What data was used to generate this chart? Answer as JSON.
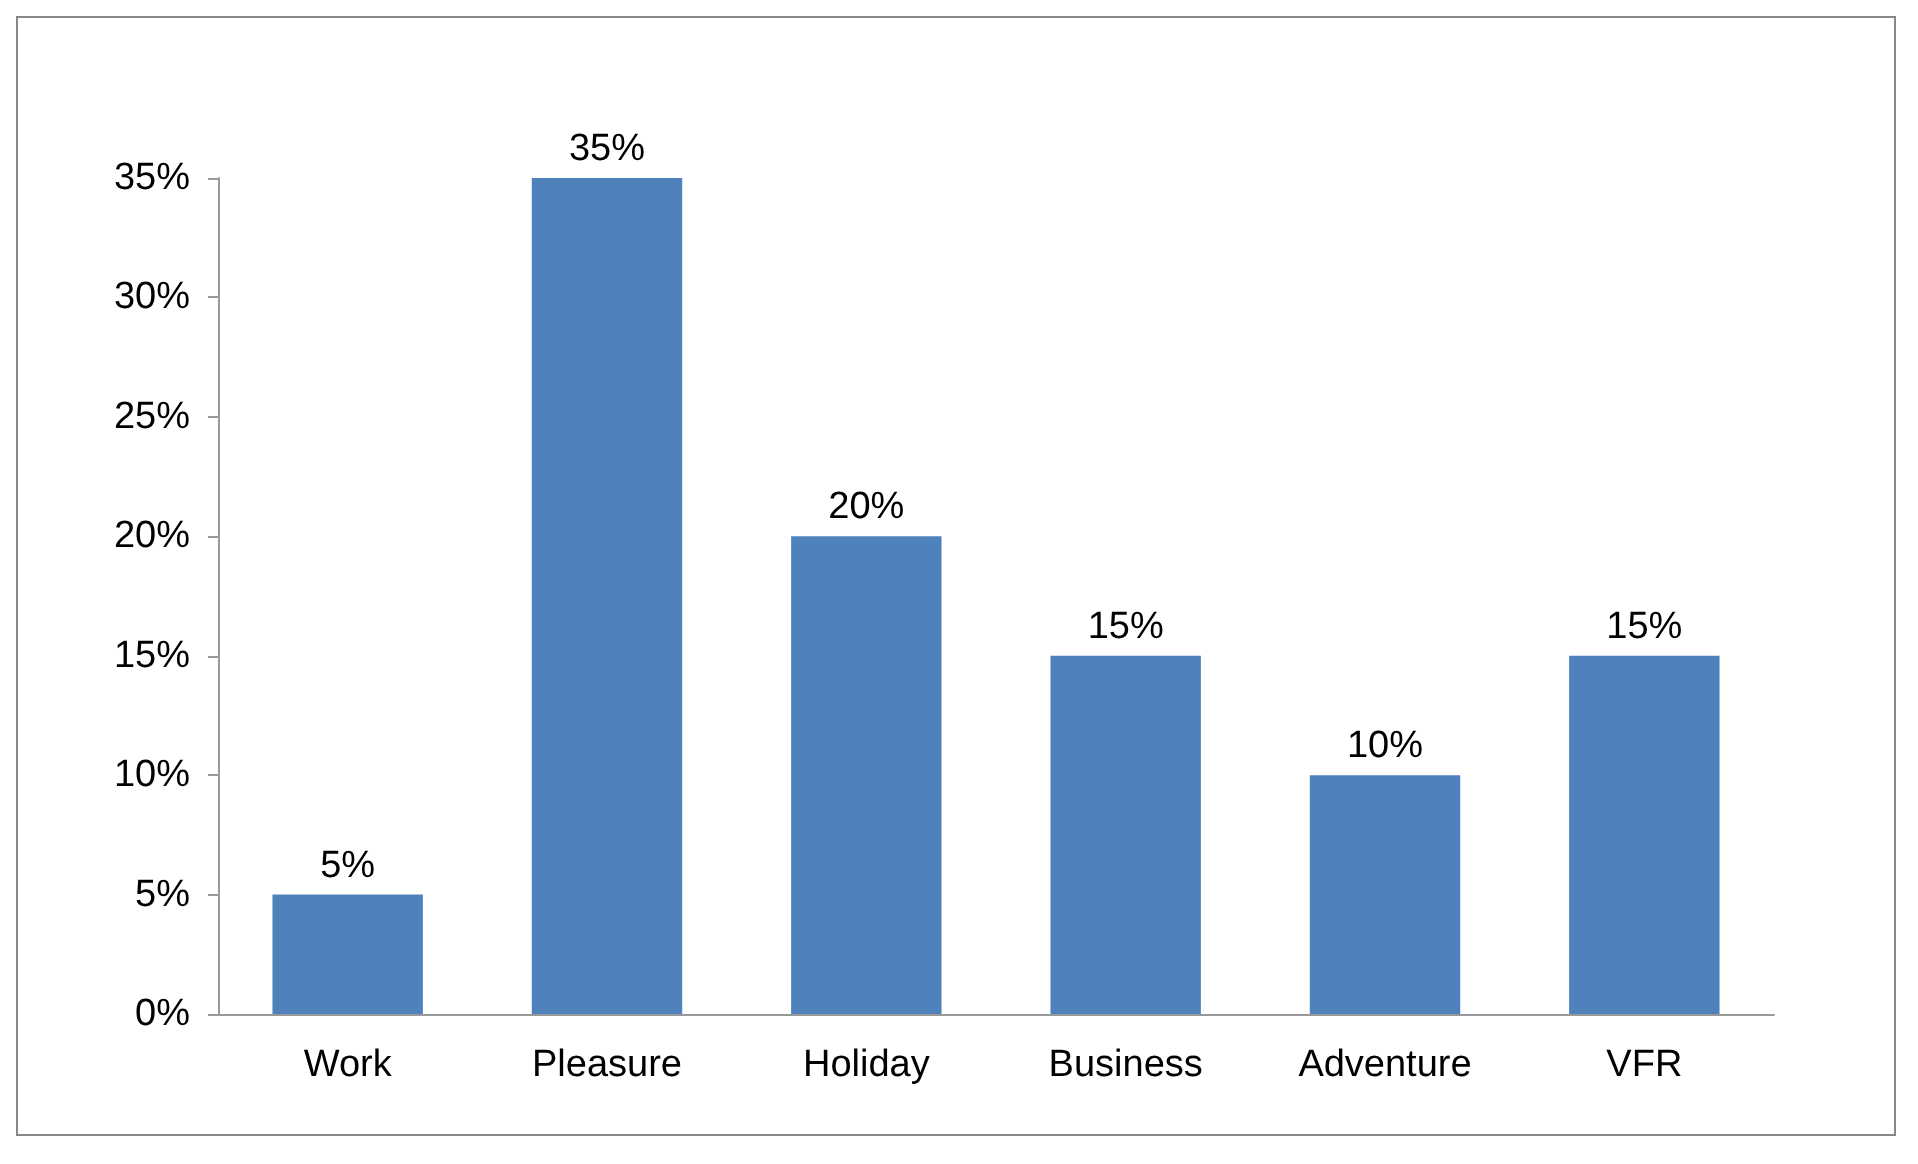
{
  "chart_data": {
    "type": "bar",
    "categories": [
      "Work",
      "Pleasure",
      "Holiday",
      "Business",
      "Adventure",
      "VFR"
    ],
    "values": [
      5,
      35,
      20,
      15,
      10,
      15
    ],
    "value_labels": [
      "5%",
      "35%",
      "20%",
      "15%",
      "10%",
      "15%"
    ],
    "color": "#4f81bd",
    "ylim": [
      0,
      35
    ],
    "yticks": [
      {
        "value": 0,
        "label": "0%"
      },
      {
        "value": 5,
        "label": "5%"
      },
      {
        "value": 10,
        "label": "10%"
      },
      {
        "value": 15,
        "label": "15%"
      },
      {
        "value": 20,
        "label": "20%"
      },
      {
        "value": 25,
        "label": "25%"
      },
      {
        "value": 30,
        "label": "30%"
      },
      {
        "value": 35,
        "label": "35%"
      }
    ],
    "grid": false
  }
}
